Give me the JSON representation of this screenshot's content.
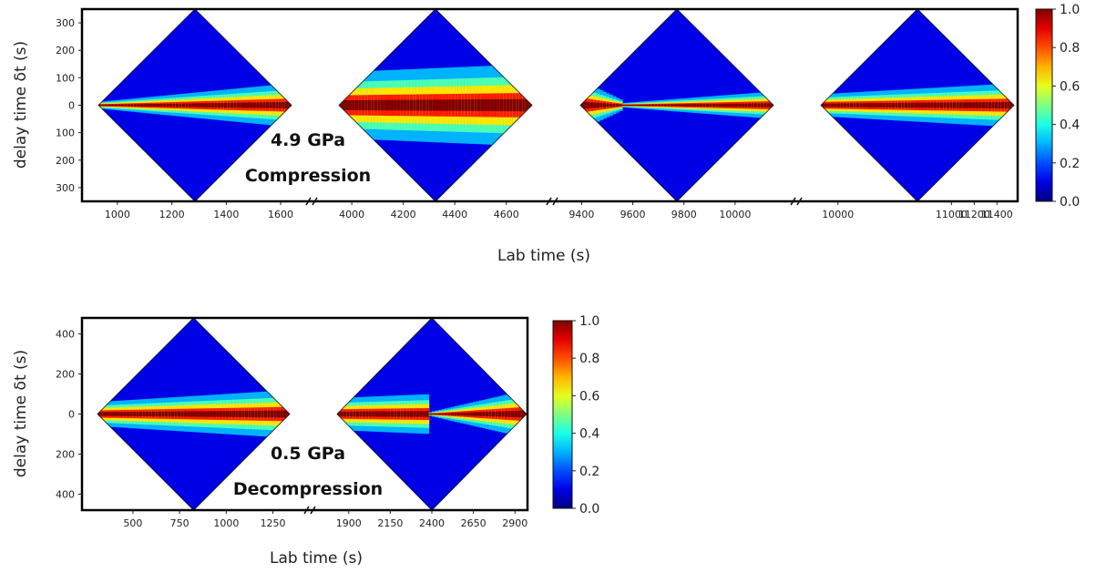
{
  "chart_data": [
    {
      "type": "heatmap",
      "title": "",
      "xlabel": "Lab time (s)",
      "ylabel": "delay time δt (s)",
      "annotation": [
        "4.9 GPa",
        "Compression"
      ],
      "y_ticks": [
        "300",
        "200",
        "100",
        "0",
        "100",
        "200",
        "300"
      ],
      "ylim": [
        -350,
        350
      ],
      "colorbar": {
        "min": 0.0,
        "max": 1.0,
        "ticks": [
          "1.0",
          "0.8",
          "0.6",
          "0.4",
          "0.2",
          "0.0"
        ],
        "colormap": "jet"
      },
      "axis_breaks": 3,
      "panels": [
        {
          "xlim": [
            930,
            1640
          ],
          "x_ticks": [
            1000,
            1200,
            1400,
            1600
          ],
          "x_tick_labels": [
            "1000",
            "1200",
            "1400",
            "1600"
          ],
          "band_halfwidth_start": 6,
          "band_halfwidth_end": 40,
          "narrow_until": null
        },
        {
          "xlim": [
            3950,
            4700
          ],
          "x_ticks": [
            4000,
            4200,
            4400,
            4600
          ],
          "x_tick_labels": [
            "4000",
            "4200",
            "4400",
            "4600"
          ],
          "band_halfwidth_start": 60,
          "band_halfwidth_end": 75,
          "narrow_until": null
        },
        {
          "xlim": [
            9395,
            10150
          ],
          "x_ticks": [
            9400,
            9600,
            9800,
            10000
          ],
          "x_tick_labels": [
            "9400",
            "9600",
            "9800",
            "10000"
          ],
          "band_halfwidth_start": 45,
          "band_halfwidth_end": 25,
          "narrow_until": 9560
        },
        {
          "xlim": [
            9850,
            11550
          ],
          "x_ticks": [
            10000,
            11000,
            11200,
            11400
          ],
          "x_tick_labels": [
            "10000",
            "11000",
            "11200",
            "11400"
          ],
          "band_halfwidth_start": 20,
          "band_halfwidth_end": 40,
          "narrow_until": null
        }
      ]
    },
    {
      "type": "heatmap",
      "title": "",
      "xlabel": "Lab time (s)",
      "ylabel": "delay time δt (s)",
      "annotation": [
        "0.5 GPa",
        "Decompression"
      ],
      "y_ticks": [
        "400",
        "200",
        "0",
        "200",
        "400"
      ],
      "ylim": [
        -480,
        480
      ],
      "colorbar": {
        "min": 0.0,
        "max": 1.0,
        "ticks": [
          "1.0",
          "0.8",
          "0.6",
          "0.4",
          "0.2",
          "0.0"
        ],
        "colormap": "jet"
      },
      "axis_breaks": 1,
      "panels": [
        {
          "xlim": [
            310,
            1340
          ],
          "x_ticks": [
            500,
            750,
            1000,
            1250
          ],
          "x_tick_labels": [
            "500",
            "750",
            "1000",
            "1250"
          ],
          "band_halfwidth_start": 30,
          "band_halfwidth_end": 60,
          "narrow_until": null
        },
        {
          "xlim": [
            1830,
            2970
          ],
          "x_ticks": [
            1900,
            2150,
            2400,
            2650,
            2900
          ],
          "x_tick_labels": [
            "1900",
            "2150",
            "2400",
            "2650",
            "2900"
          ],
          "band_halfwidth_start": 40,
          "band_halfwidth_end": 60,
          "narrow_until": 2380
        }
      ]
    }
  ]
}
